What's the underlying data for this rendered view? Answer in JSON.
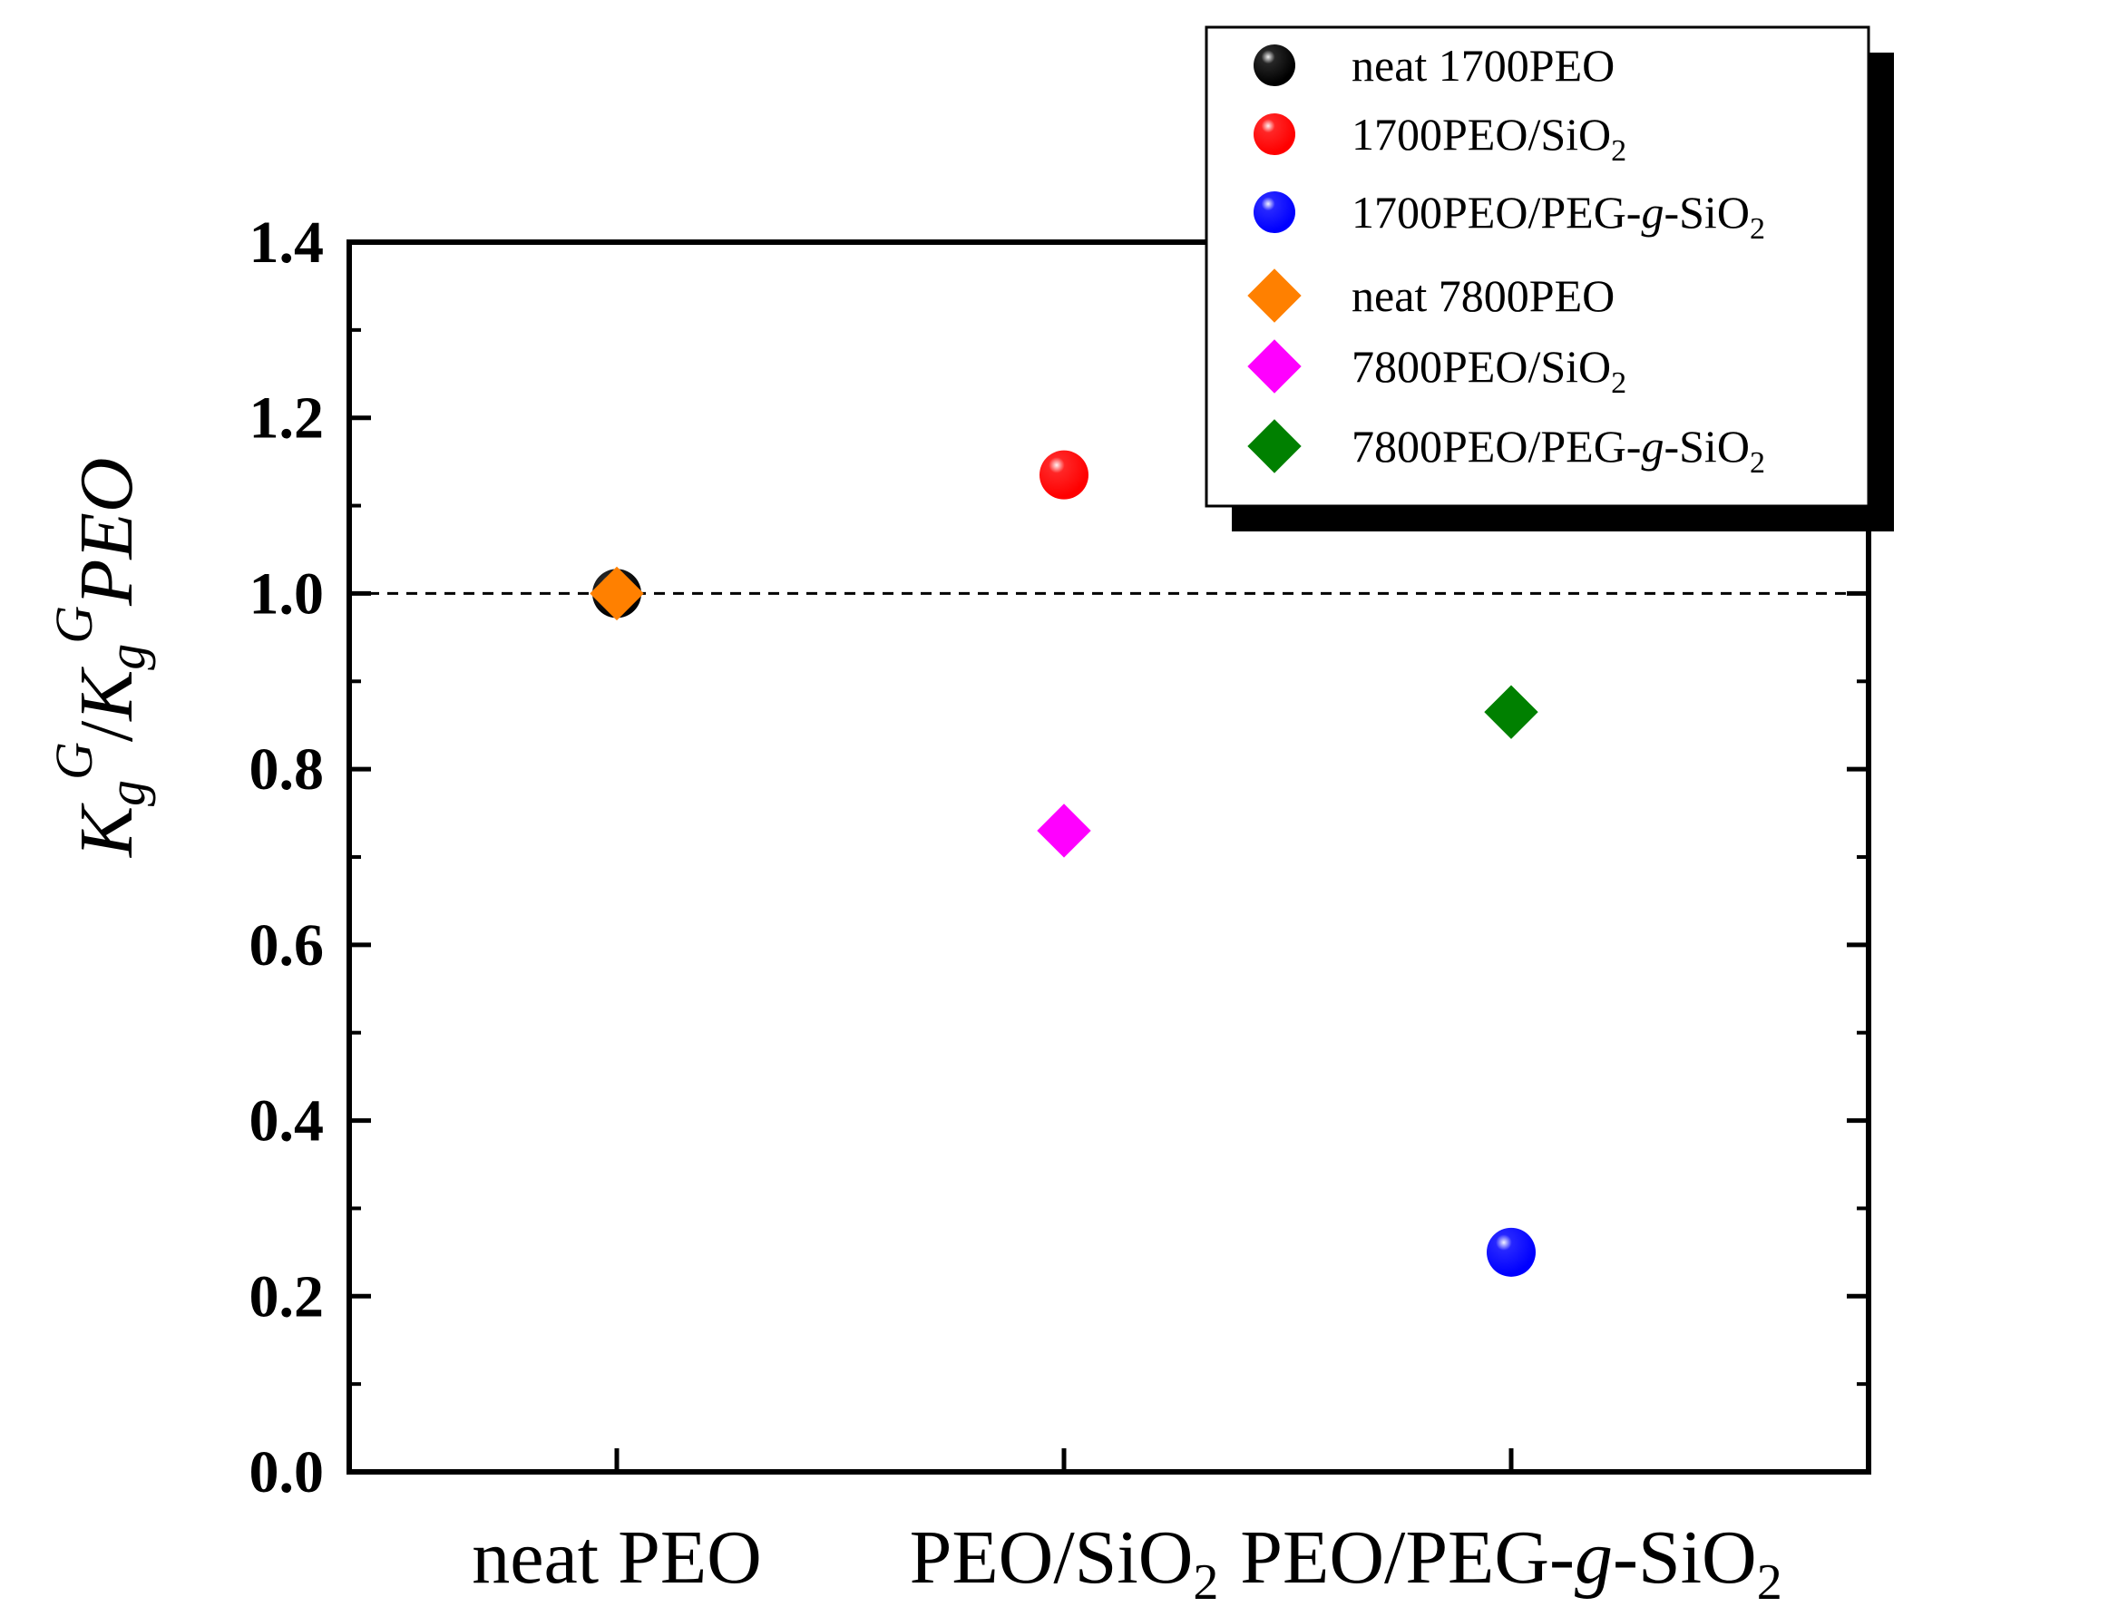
{
  "chart_data": {
    "type": "scatter",
    "title": "",
    "xlabel": "",
    "ylabel": "Kg G/Kg G PEO",
    "ylabel_parts": {
      "k1": "K",
      "sub1": "g",
      "sup1": "G",
      "slash": "/",
      "k2": "K",
      "sub2": "g",
      "sup2": "G",
      "tail": "PEO"
    },
    "categories": [
      "neat PEO",
      "PEO/SiO2",
      "PEO/PEG-g-SiO2"
    ],
    "category_parts": [
      {
        "a": "neat PEO",
        "sub": "",
        "b": ""
      },
      {
        "a": "PEO/SiO",
        "sub": "2",
        "b": ""
      },
      {
        "a": "PEO/PEG-",
        "italic": "g",
        "b": "-SiO",
        "sub": "2"
      }
    ],
    "ylim": [
      0.0,
      1.4
    ],
    "yticks": [
      "0.0",
      "0.2",
      "0.4",
      "0.6",
      "0.8",
      "1.0",
      "1.2",
      "1.4"
    ],
    "reference_line": 1.0,
    "series": [
      {
        "name": "neat 1700PEO",
        "marker": "circle",
        "color": "#000000",
        "points": [
          {
            "category": "neat PEO",
            "y": 1.0
          }
        ]
      },
      {
        "name": "1700PEO/SiO2",
        "marker": "circle",
        "color": "#ff0000",
        "points": [
          {
            "category": "PEO/SiO2",
            "y": 1.135
          }
        ]
      },
      {
        "name": "1700PEO/PEG-g-SiO2",
        "marker": "circle",
        "color": "#0000ff",
        "points": [
          {
            "category": "PEO/PEG-g-SiO2",
            "y": 0.25
          }
        ]
      },
      {
        "name": "neat 7800PEO",
        "marker": "diamond",
        "color": "#ff8000",
        "points": [
          {
            "category": "neat PEO",
            "y": 1.0
          }
        ]
      },
      {
        "name": "7800PEO/SiO2",
        "marker": "diamond",
        "color": "#ff00ff",
        "points": [
          {
            "category": "PEO/SiO2",
            "y": 0.73
          }
        ]
      },
      {
        "name": "7800PEO/PEG-g-SiO2",
        "marker": "diamond",
        "color": "#008000",
        "points": [
          {
            "category": "PEO/PEG-g-SiO2",
            "y": 0.865
          }
        ]
      }
    ],
    "legend": {
      "placement": "top-right",
      "entries": [
        {
          "a": "neat 1700PEO"
        },
        {
          "a": "1700PEO/SiO",
          "sub": "2"
        },
        {
          "a": "1700PEO/PEG-",
          "italic": "g",
          "b": "-SiO",
          "sub": "2"
        },
        {
          "a": "neat 7800PEO"
        },
        {
          "a": "7800PEO/SiO",
          "sub": "2"
        },
        {
          "a": "7800PEO/PEG-",
          "italic": "g",
          "b": "-SiO",
          "sub": "2"
        }
      ]
    }
  }
}
